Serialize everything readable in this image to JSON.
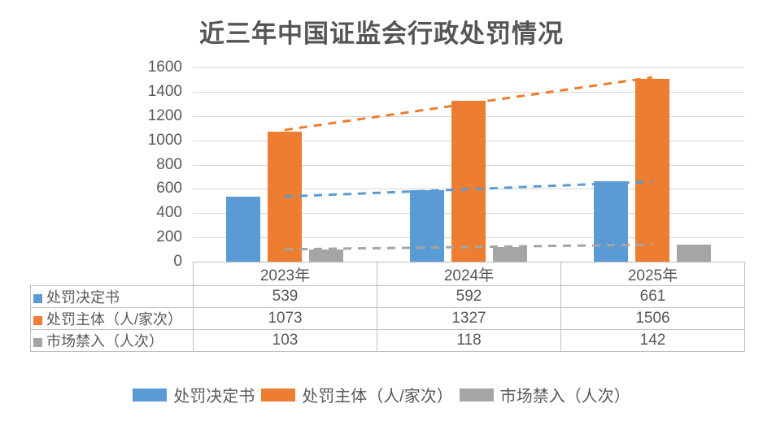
{
  "chart_data": {
    "type": "bar",
    "title": "近三年中国证监会行政处罚情况",
    "categories": [
      "2023年",
      "2024年",
      "2025年"
    ],
    "series": [
      {
        "name": "处罚决定书",
        "color": "#5B9BD5",
        "values": [
          539,
          592,
          661
        ]
      },
      {
        "name": "处罚主体（人/家次）",
        "color": "#ED7D31",
        "values": [
          1073,
          1327,
          1506
        ]
      },
      {
        "name": "市场禁入（人次）",
        "color": "#A5A5A5",
        "values": [
          103,
          118,
          142
        ]
      }
    ],
    "ylim": [
      0,
      1600
    ],
    "ytick_step": 200,
    "yticks": [
      0,
      200,
      400,
      600,
      800,
      1000,
      1200,
      1400,
      1600
    ],
    "grid": true,
    "trendlines": {
      "type": "linear",
      "style": "dashed",
      "per_series": true
    },
    "legend_position": "bottom",
    "data_table_shown": true
  },
  "styles": {
    "text_color": "#595959",
    "grid_color": "#D6D6D6",
    "table_border_color": "#BFBFBF",
    "background": "#FFFFFF"
  }
}
